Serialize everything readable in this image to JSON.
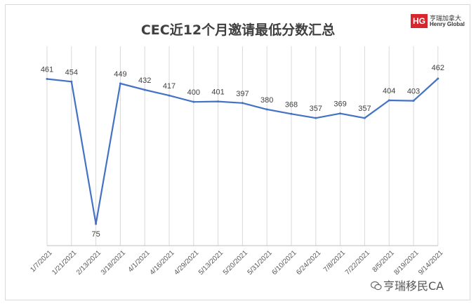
{
  "header": {
    "title": "CEC近12个月邀请最低分数汇总"
  },
  "logo": {
    "mark": "HG",
    "cn": "亨瑞加拿大",
    "en": "Henry Global",
    "brand_color": "#d7262e"
  },
  "watermark": {
    "text": "亨瑞移民CA",
    "icon": "wechat-icon"
  },
  "chart_data": {
    "type": "line",
    "title": "CEC近12个月邀请最低分数汇总",
    "xlabel": "",
    "ylabel": "",
    "categories": [
      "1/7/2021",
      "1/21/2021",
      "2/13/2021",
      "3/18/2021",
      "4/1/2021",
      "4/16/2021",
      "4/29/2021",
      "5/13/2021",
      "5/20/2021",
      "5/31/2021",
      "6/10/2021",
      "6/24/2021",
      "7/8/2021",
      "7/22/2021",
      "8/5/2021",
      "8/19/2021",
      "9/14/2021"
    ],
    "series": [
      {
        "values": [
          461,
          454,
          75,
          449,
          432,
          417,
          400,
          401,
          397,
          380,
          368,
          357,
          369,
          357,
          404,
          403,
          462
        ],
        "color": "#4472c4"
      }
    ],
    "grid": "vertical",
    "legend": "none"
  }
}
